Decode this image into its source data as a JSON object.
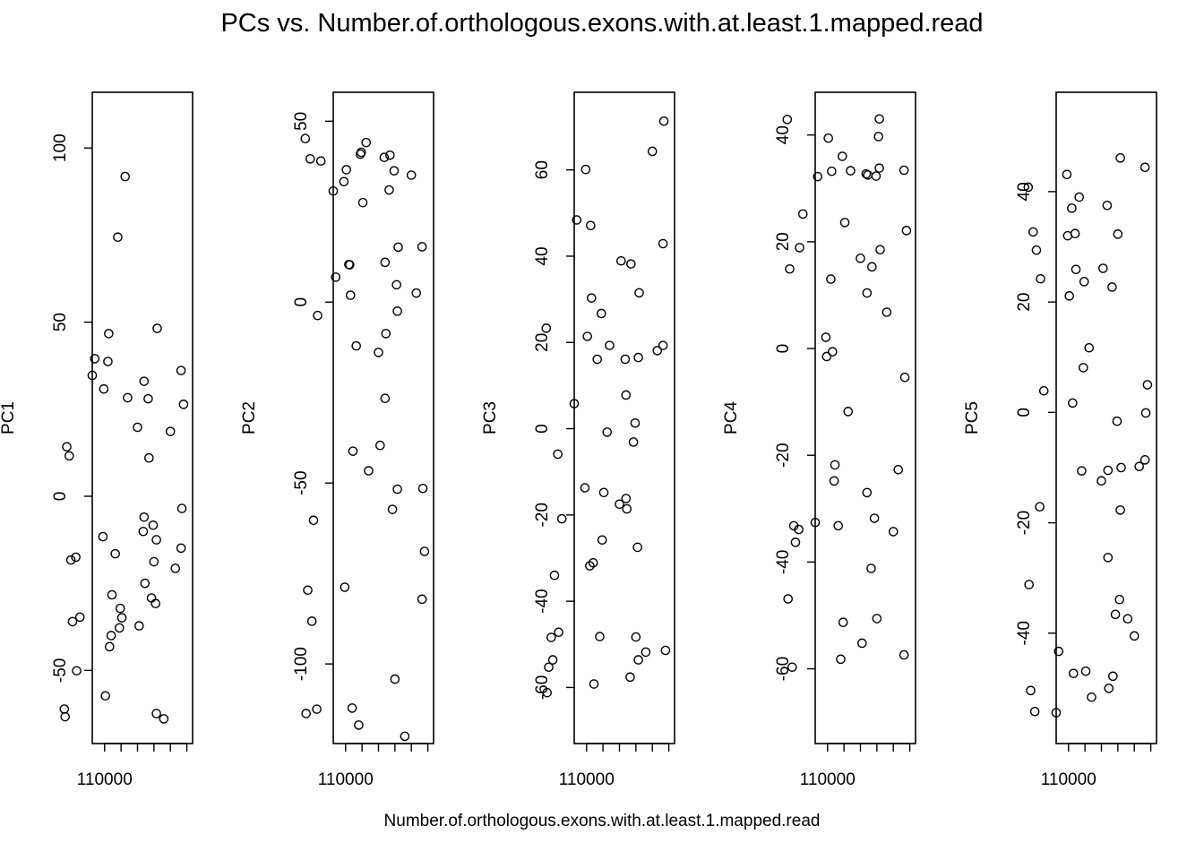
{
  "title": "PCs vs. Number.of.orthologous.exons.with.at.least.1.mapped.read",
  "xlabel": "Number.of.orthologous.exons.with.at.least.1.mapped.read",
  "chart_data": {
    "type": "scatter",
    "title": "PCs vs. Number.of.orthologous.exons.with.at.least.1.mapped.read",
    "xlabel": "Number.of.orthologous.exons.with.at.least.1.mapped.read",
    "x_axis": {
      "major_tick": 110000,
      "major_label": "110000",
      "tick_count": 6
    },
    "points": [
      {
        "x": 102.8,
        "pc": [
          -63.9,
          -120.0,
          -51.8,
          6.8,
          -37.4
        ]
      },
      {
        "x": 109.4,
        "pc": [
          -43.2,
          1.9,
          30.3,
          -0.6,
          -47.3
        ]
      },
      {
        "x": 107.5,
        "pc": [
          91.8,
          44.1,
          -0.8,
          -11.8,
          11.7
        ]
      },
      {
        "x": 109.1,
        "pc": [
          -28.3,
          -41.2,
          -59.2,
          -21.8,
          25.9
        ]
      },
      {
        "x": 108.4,
        "pc": [
          74.4,
          -116.9,
          -48.2,
          -58.2,
          -10.6
        ]
      },
      {
        "x": 113.4,
        "pc": [
          -50.1,
          -3.7,
          -47.2,
          18.9,
          24.2
        ]
      },
      {
        "x": 100.4,
        "pc": [
          26.4,
          -68.9,
          -51.4,
          22.1,
          5.0
        ]
      },
      {
        "x": 113.0,
        "pc": [
          -34.7,
          39.0,
          -20.9,
          25.2,
          3.9
        ]
      },
      {
        "x": 107.2,
        "pc": [
          28.3,
          -46.6,
          19.3,
          33.3,
          -51.6
        ]
      },
      {
        "x": 104.1,
        "pc": [
          -8.3,
          36.3,
          1.3,
          32.3,
          -1.6
        ]
      },
      {
        "x": 104.3,
        "pc": [
          -29.2,
          -57.3,
          -3.1,
          -31.8,
          -36.6
        ]
      },
      {
        "x": 111.5,
        "pc": [
          34.7,
          30.7,
          5.8,
          -32.6,
          -54.4
        ]
      },
      {
        "x": 109.2,
        "pc": [
          -40.0,
          -112.2,
          -31.1,
          -24.8,
          32.4
        ]
      },
      {
        "x": 100.7,
        "pc": [
          36.1,
          15.3,
          19.3,
          33.4,
          44.4
        ]
      },
      {
        "x": 114.8,
        "pc": [
          -63.3,
          -113.7,
          -61.2,
          -46.9,
          -31.2
        ]
      },
      {
        "x": 105.2,
        "pc": [
          33.0,
          -26.6,
          7.8,
          10.4,
          -26.3
        ]
      },
      {
        "x": 109.9,
        "pc": [
          -57.3,
          36.6,
          21.4,
          39.4,
          21.1
        ]
      },
      {
        "x": 108.2,
        "pc": [
          -37.8,
          40.9,
          26.7,
          36.0,
          8.1
        ]
      },
      {
        "x": 104.7,
        "pc": [
          28.0,
          31.0,
          -57.6,
          -41.2,
          22.7
        ]
      },
      {
        "x": 113.9,
        "pc": [
          -36.0,
          -60.3,
          -34.0,
          -36.3,
          29.4
        ]
      },
      {
        "x": 109.6,
        "pc": [
          38.7,
          10.4,
          -31.8,
          13.0,
          37.0
        ]
      },
      {
        "x": 105.3,
        "pc": [
          -10.1,
          40.0,
          16.1,
          32.7,
          37.5
        ]
      },
      {
        "x": 103.8,
        "pc": [
          -30.8,
          4.8,
          -27.5,
          39.7,
          -33.9
        ]
      },
      {
        "x": 108.1,
        "pc": [
          -32.2,
          41.4,
          -25.8,
          -51.3,
          23.7
        ]
      },
      {
        "x": 106.0,
        "pc": [
          19.8,
          -13.9,
          -17.5,
          16.9,
          -12.4
        ]
      },
      {
        "x": 100.7,
        "pc": [
          -14.9,
          -82.1,
          42.9,
          -57.4,
          -8.6
        ]
      },
      {
        "x": 101.4,
        "pc": [
          -20.7,
          2.5,
          18.1,
          -22.7,
          -9.8
        ]
      },
      {
        "x": 108.7,
        "pc": [
          -16.5,
          -12.1,
          16.1,
          -33.2,
          39.0
        ]
      },
      {
        "x": 104.0,
        "pc": [
          -18.8,
          -104.2,
          -48.3,
          -50.6,
          32.3
        ]
      },
      {
        "x": 105.2,
        "pc": [
          -6.0,
          11.0,
          -16.2,
          -27.0,
          -10.5
        ]
      },
      {
        "x": 105.8,
        "pc": [
          -37.2,
          -39.6,
          38.9,
          -55.2,
          26.1
        ]
      },
      {
        "x": 113.5,
        "pc": [
          -17.5,
          -112.5,
          -5.9,
          -33.9,
          -17.1
        ]
      },
      {
        "x": 103.6,
        "pc": [
          48.2,
          15.2,
          31.5,
          18.5,
          -10.0
        ]
      },
      {
        "x": 110.1,
        "pc": [
          30.8,
          -78.8,
          60.1,
          -1.5,
          32.0
        ]
      },
      {
        "x": 114.6,
        "pc": [
          14.2,
          -79.6,
          -55.3,
          14.9,
          -50.4
        ]
      },
      {
        "x": 103.7,
        "pc": [
          -12.5,
          -51.7,
          -53.6,
          43.0,
          -17.7
        ]
      },
      {
        "x": 105.1,
        "pc": [
          -25.0,
          -8.7,
          -18.6,
          32.5,
          -50.0
        ]
      },
      {
        "x": 111.2,
        "pc": [
          39.5,
          6.9,
          48.4,
          32.2,
          -43.3
        ]
      },
      {
        "x": 110.2,
        "pc": [
          -11.6,
          33.3,
          -13.7,
          2.1,
          43.1
        ]
      },
      {
        "x": 100.6,
        "pc": [
          -3.5,
          -51.5,
          71.3,
          -5.4,
          -0.1
        ]
      },
      {
        "x": 109.5,
        "pc": [
          46.7,
          10.3,
          47.1,
          33.2,
          1.7
        ]
      },
      {
        "x": 114.3,
        "pc": [
          11.6,
          39.6,
          -48.4,
          -59.7,
          32.7
        ]
      },
      {
        "x": 104.6,
        "pc": [
          11.0,
          40.6,
          38.2,
          15.3,
          -47.8
        ]
      },
      {
        "x": 114.9,
        "pc": [
          -61.1,
          45.2,
          23.3,
          42.9,
          40.8
        ]
      },
      {
        "x": 114.1,
        "pc": [
          -18.3,
          -88.2,
          -53.6,
          -33.2,
          -54.2
        ]
      },
      {
        "x": 103.7,
        "pc": [
          -62.4,
          -2.5,
          16.5,
          33.8,
          46.1
        ]
      },
      {
        "x": 102.0,
        "pc": [
          18.6,
          35.1,
          64.3,
          -34.3,
          -40.5
        ]
      },
      {
        "x": 107.9,
        "pc": [
          -34.9,
          27.5,
          -14.8,
          23.6,
          -46.9
        ]
      }
    ],
    "panels": [
      {
        "ylabel": "PC1",
        "xlim": [
          111.5,
          99.3
        ],
        "ylim": [
          -71,
          116
        ],
        "ticks": [
          -50,
          0,
          50,
          100
        ],
        "tick_labels": [
          "-50",
          "0",
          "50",
          "100"
        ]
      },
      {
        "ylabel": "PC2",
        "xlim": [
          111.5,
          99.3
        ],
        "ylim": [
          -122,
          58
        ],
        "ticks": [
          -100,
          -50,
          0,
          50
        ],
        "tick_labels": [
          "-100",
          "-50",
          "0",
          "50"
        ]
      },
      {
        "ylabel": "PC3",
        "xlim": [
          111.5,
          99.3
        ],
        "ylim": [
          -73,
          78
        ],
        "ticks": [
          -60,
          -40,
          -20,
          0,
          20,
          40,
          60
        ],
        "tick_labels": [
          "-60",
          "-40",
          "-20",
          "0",
          "20",
          "40",
          "60"
        ]
      },
      {
        "ylabel": "PC4",
        "xlim": [
          111.5,
          99.3
        ],
        "ylim": [
          -74,
          48
        ],
        "ticks": [
          -60,
          -40,
          -20,
          0,
          20,
          40
        ],
        "tick_labels": [
          "-60",
          "-40",
          "-20",
          "0",
          "20",
          "40"
        ]
      },
      {
        "ylabel": "PC5",
        "xlim": [
          111.5,
          99.3
        ],
        "ylim": [
          -60,
          58
        ],
        "ticks": [
          -40,
          -20,
          0,
          20,
          40
        ],
        "tick_labels": [
          "-40",
          "-20",
          "0",
          "20",
          "40"
        ]
      }
    ]
  }
}
